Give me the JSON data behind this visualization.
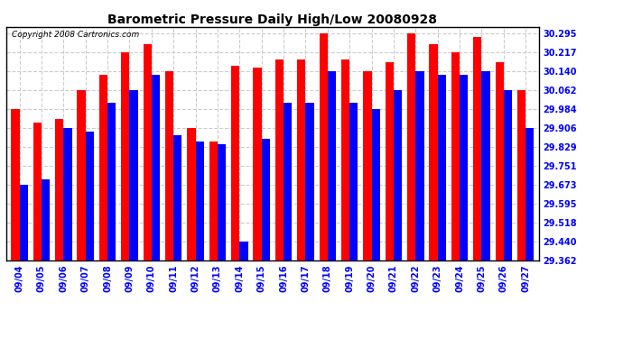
{
  "title": "Barometric Pressure Daily High/Low 20080928",
  "copyright": "Copyright 2008 Cartronics.com",
  "categories": [
    "09/04",
    "09/05",
    "09/06",
    "09/07",
    "09/08",
    "09/09",
    "09/10",
    "09/11",
    "09/12",
    "09/13",
    "09/14",
    "09/15",
    "09/16",
    "09/17",
    "09/18",
    "09/19",
    "09/20",
    "09/21",
    "09/22",
    "09/23",
    "09/24",
    "09/25",
    "09/26",
    "09/27"
  ],
  "highs": [
    29.984,
    29.929,
    29.944,
    30.062,
    30.125,
    30.217,
    30.25,
    30.14,
    29.906,
    29.851,
    30.16,
    30.155,
    30.185,
    30.185,
    30.295,
    30.185,
    30.14,
    30.175,
    30.295,
    30.25,
    30.217,
    30.28,
    30.175,
    30.062
  ],
  "lows": [
    29.673,
    29.695,
    29.906,
    29.89,
    30.01,
    30.062,
    30.125,
    29.875,
    29.851,
    29.84,
    29.44,
    29.862,
    30.01,
    30.01,
    30.14,
    30.01,
    29.984,
    30.062,
    30.14,
    30.125,
    30.125,
    30.14,
    30.062,
    29.906
  ],
  "high_color": "#FF0000",
  "low_color": "#0000FF",
  "bg_color": "#FFFFFF",
  "grid_color": "#CCCCCC",
  "yticks": [
    29.362,
    29.44,
    29.518,
    29.595,
    29.673,
    29.751,
    29.829,
    29.906,
    29.984,
    30.062,
    30.14,
    30.217,
    30.295
  ],
  "ymin": 29.362,
  "ymax": 30.32,
  "bar_width": 0.38,
  "title_fontsize": 10,
  "tick_fontsize": 7,
  "copyright_fontsize": 6.5
}
